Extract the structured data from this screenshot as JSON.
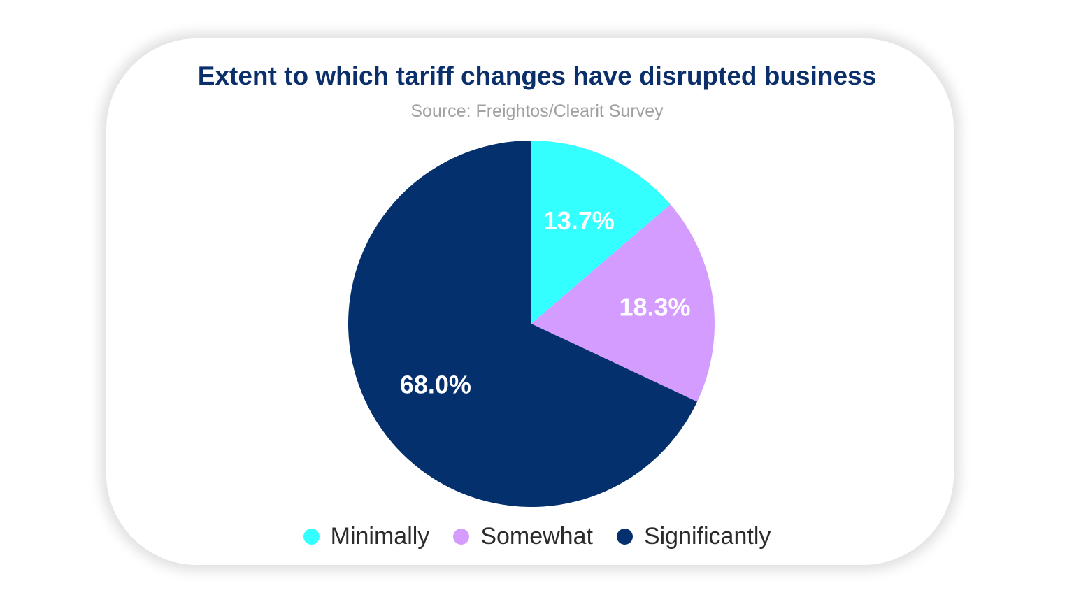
{
  "chart_data": {
    "type": "pie",
    "title": "Extent to which tariff changes have disrupted business",
    "subtitle": "Source: Freightos/Clearit Survey",
    "slices": [
      {
        "label": "Minimally",
        "value": 13.7,
        "display": "13.7%",
        "color": "#33ffff"
      },
      {
        "label": "Somewhat",
        "value": 18.3,
        "display": "18.3%",
        "color": "#d49cff"
      },
      {
        "label": "Significantly",
        "value": 68.0,
        "display": "68.0%",
        "color": "#04306e"
      }
    ],
    "legend_position": "bottom"
  }
}
